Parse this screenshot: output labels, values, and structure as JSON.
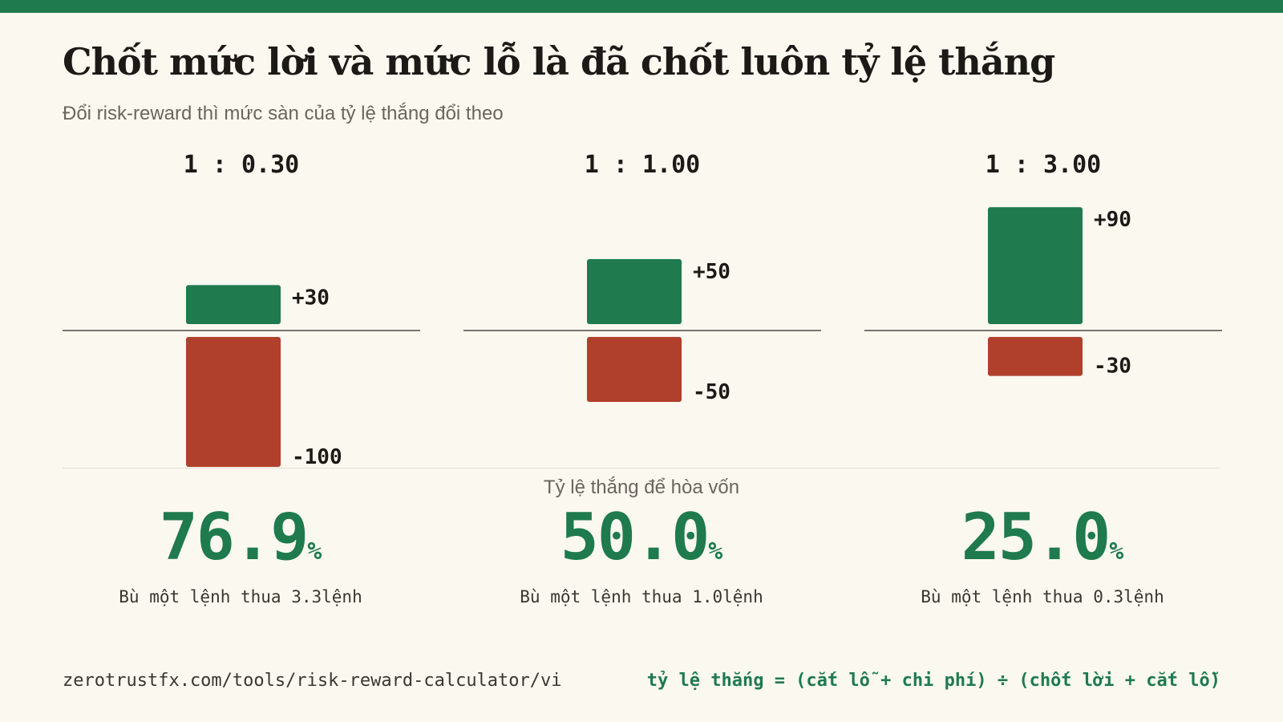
{
  "header": {
    "title": "Chốt mức lời và mức lỗ là đã chốt luôn tỷ lệ thắng",
    "subtitle": "Đổi risk-reward thì mức sàn của tỷ lệ thắng đổi theo"
  },
  "chart_data": {
    "type": "bar",
    "categories": [
      "1 : 0.30",
      "1 : 1.00",
      "1 : 3.00"
    ],
    "series": [
      {
        "values": [
          30,
          50,
          90
        ],
        "labels": [
          "+30",
          "+50",
          "+90"
        ]
      },
      {
        "values": [
          -100,
          -50,
          -30
        ],
        "labels": [
          "-100",
          "-50",
          "-30"
        ]
      }
    ],
    "ylim": [
      -100,
      90
    ],
    "grid": false,
    "colors": {
      "profit": "#1f7a4e",
      "loss": "#b0402b"
    }
  },
  "breakeven": {
    "label": "Tỷ lệ thắng để hòa vốn",
    "items": [
      {
        "value": "76.9",
        "unit": "%",
        "note": "Bù một lệnh thua 3.3lệnh"
      },
      {
        "value": "50.0",
        "unit": "%",
        "note": "Bù một lệnh thua 1.0lệnh"
      },
      {
        "value": "25.0",
        "unit": "%",
        "note": "Bù một lệnh thua 0.3lệnh"
      }
    ]
  },
  "footer": {
    "url": "zerotrustfx.com/tools/risk-reward-calculator/vi",
    "formula": "tỷ lệ thắng = (cắt lỗ + chi phí) ÷ (chốt lời + cắt lỗ)"
  }
}
